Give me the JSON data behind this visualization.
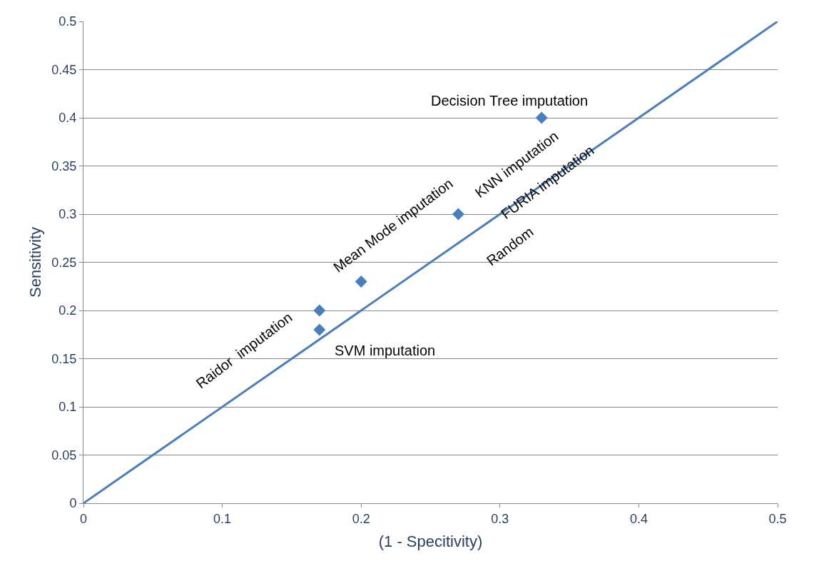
{
  "chart_data": {
    "type": "scatter",
    "xlabel": "(1 - Specitivity)",
    "ylabel": "Sensitivity",
    "series": [
      {
        "color": "#4a7ebb",
        "marker": "diamond",
        "x": [
          0.17,
          0.17,
          0.2,
          0.27,
          0.33
        ],
        "values": [
          0.2,
          0.18,
          0.23,
          0.3,
          0.4
        ]
      },
      {
        "type": "line",
        "name": "Random",
        "color": "#4a7ebb",
        "marker": "none",
        "x": [
          0,
          0.5
        ],
        "values": [
          0,
          0.5
        ]
      }
    ],
    "annotations": [
      {
        "text": "Decision Tree imputation",
        "x": 0.33,
        "y": 0.4
      },
      {
        "text": "KNN imputation",
        "x": 0.27,
        "y": 0.3
      },
      {
        "text": "FURIA imputation",
        "x": 0.27,
        "y": 0.3
      },
      {
        "text": "Mean Mode imputation",
        "x": 0.2,
        "y": 0.23
      },
      {
        "text": "Raidor  imputation",
        "x": 0.17,
        "y": 0.2
      },
      {
        "text": "SVM imputation",
        "x": 0.17,
        "y": 0.18
      }
    ],
    "xlim": [
      0,
      0.5
    ],
    "xticks": [
      0,
      0.1,
      0.2,
      0.3,
      0.4,
      0.5
    ],
    "ylim": [
      0,
      0.5
    ],
    "yticks": [
      0,
      0.05,
      0.1,
      0.15,
      0.2,
      0.25,
      0.3,
      0.35,
      0.4,
      0.45,
      0.5
    ],
    "grid": "y",
    "legend": false
  }
}
